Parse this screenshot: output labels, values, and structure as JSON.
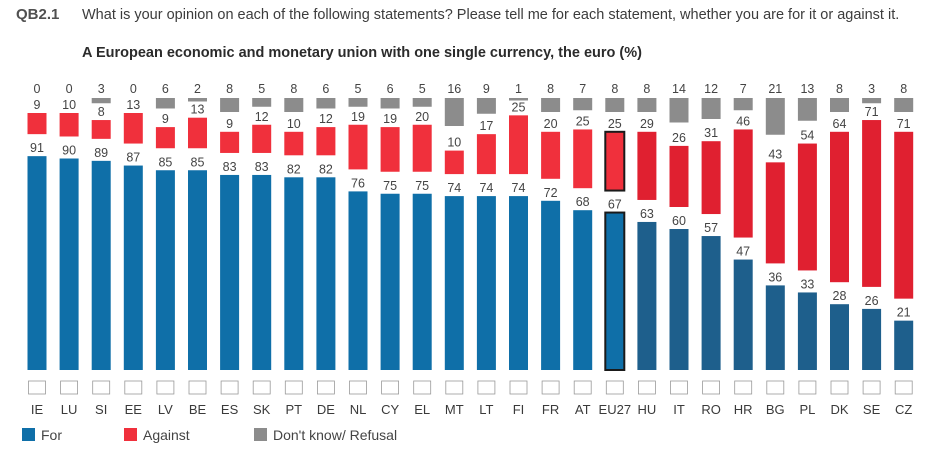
{
  "question": {
    "code": "QB2.1",
    "text": "What is your opinion on each of the following statements? Please tell me for each statement, whether you are for it or against it."
  },
  "chart_data": {
    "type": "bar",
    "stacked": true,
    "title": "A European economic and monetary union with one single currency, the euro  (%)",
    "categories": [
      "IE",
      "LU",
      "SI",
      "EE",
      "LV",
      "BE",
      "ES",
      "SK",
      "PT",
      "DE",
      "NL",
      "CY",
      "EL",
      "MT",
      "LT",
      "FI",
      "FR",
      "AT",
      "EU27",
      "HU",
      "IT",
      "RO",
      "HR",
      "BG",
      "PL",
      "DK",
      "SE",
      "CZ"
    ],
    "highlight_category": "EU27",
    "euro_area_categories": [
      "IE",
      "LU",
      "SI",
      "EE",
      "LV",
      "BE",
      "ES",
      "SK",
      "PT",
      "DE",
      "NL",
      "CY",
      "EL",
      "MT",
      "LT",
      "FI",
      "FR",
      "AT"
    ],
    "series": [
      {
        "name": "For",
        "color": "#0f6fa8",
        "color_non_euro": "#1e5f8c",
        "values": [
          91,
          90,
          89,
          87,
          85,
          85,
          83,
          83,
          82,
          82,
          76,
          75,
          75,
          74,
          74,
          74,
          72,
          68,
          67,
          63,
          60,
          57,
          47,
          36,
          33,
          28,
          26,
          21
        ]
      },
      {
        "name": "Against",
        "color": "#f0303c",
        "color_non_euro": "#e02030",
        "values": [
          9,
          10,
          8,
          13,
          9,
          13,
          9,
          12,
          10,
          12,
          19,
          19,
          20,
          10,
          17,
          25,
          20,
          25,
          25,
          29,
          26,
          31,
          46,
          43,
          54,
          64,
          71,
          71
        ]
      },
      {
        "name": "Don't know/ Refusal",
        "color": "#8c8c8c",
        "values": [
          0,
          0,
          3,
          0,
          6,
          2,
          8,
          5,
          8,
          6,
          5,
          6,
          5,
          16,
          9,
          1,
          8,
          7,
          8,
          8,
          14,
          12,
          7,
          21,
          13,
          8,
          3,
          8
        ]
      }
    ],
    "ylim": [
      0,
      100
    ],
    "legend_position": "bottom-left"
  }
}
